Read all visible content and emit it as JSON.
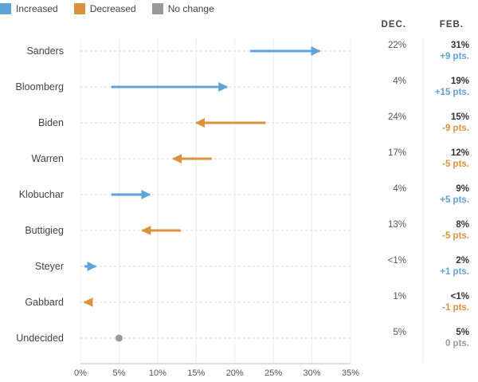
{
  "legend": [
    {
      "label": "Increased",
      "color": "#5fa3d7"
    },
    {
      "label": "Decreased",
      "color": "#dc913e"
    },
    {
      "label": "No change",
      "color": "#999999"
    }
  ],
  "colors": {
    "increased": "#5fa3d7",
    "decreased": "#dc913e",
    "nochange": "#999999"
  },
  "chart_data": {
    "type": "arrow-dumbbell",
    "categories": [
      "Sanders",
      "Bloomberg",
      "Biden",
      "Warren",
      "Klobuchar",
      "Buttigieg",
      "Steyer",
      "Gabbard",
      "Undecided"
    ],
    "series": [
      {
        "name": "DEC.",
        "values": [
          22,
          4,
          24,
          17,
          4,
          13,
          0.5,
          1,
          5
        ],
        "labels": [
          "22%",
          "4%",
          "24%",
          "17%",
          "4%",
          "13%",
          "<1%",
          "1%",
          "5%"
        ]
      },
      {
        "name": "FEB.",
        "values": [
          31,
          19,
          15,
          12,
          9,
          8,
          2,
          0.5,
          5
        ],
        "labels": [
          "31%",
          "19%",
          "15%",
          "12%",
          "9%",
          "8%",
          "2%",
          "<1%",
          "5%"
        ]
      }
    ],
    "changes": [
      "+9 pts.",
      "+15 pts.",
      "-9 pts.",
      "-5 pts.",
      "+5 pts.",
      "-5 pts.",
      "+1 pts.",
      "-1 pts.",
      "0 pts."
    ],
    "directions": [
      "increased",
      "increased",
      "decreased",
      "decreased",
      "increased",
      "decreased",
      "increased",
      "decreased",
      "nochange"
    ],
    "xlim": [
      0,
      35
    ],
    "xticks": [
      0,
      5,
      10,
      15,
      20,
      25,
      30,
      35
    ],
    "xtick_labels": [
      "0%",
      "5%",
      "10%",
      "15%",
      "20%",
      "25%",
      "30%",
      "35%"
    ],
    "xlabel": "",
    "ylabel": "",
    "grid": true,
    "legend_position": "top-left",
    "columns": {
      "dec": "DEC.",
      "feb": "FEB."
    }
  }
}
